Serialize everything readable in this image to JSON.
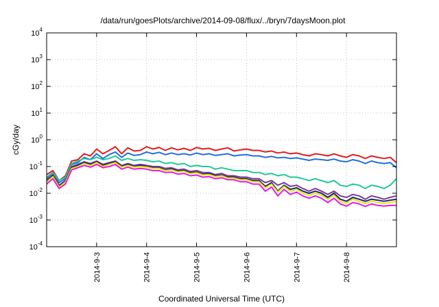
{
  "chart_data": {
    "type": "line",
    "title": "/data/run/goesPlots/archive/2014-09-08/flux/../bryn/7daysMoon.plot",
    "xlabel": "Coordinated Universal Time (UTC)",
    "ylabel": "cGy/day",
    "yscale": "log",
    "ylim": [
      0.0001,
      10000
    ],
    "y_ticks": [
      {
        "value": 0.0001,
        "base": "10",
        "exp": "-4"
      },
      {
        "value": 0.001,
        "base": "10",
        "exp": "-3"
      },
      {
        "value": 0.01,
        "base": "10",
        "exp": "-2"
      },
      {
        "value": 0.1,
        "base": "10",
        "exp": "-1"
      },
      {
        "value": 1,
        "base": "10",
        "exp": "0"
      },
      {
        "value": 10,
        "base": "10",
        "exp": "1"
      },
      {
        "value": 100,
        "base": "10",
        "exp": "2"
      },
      {
        "value": 1000,
        "base": "10",
        "exp": "3"
      },
      {
        "value": 10000,
        "base": "10",
        "exp": "4"
      }
    ],
    "xlim": [
      "2014-09-02T00:00",
      "2014-09-09T00:00"
    ],
    "x_ticks": [
      "2014-9-3",
      "2014-9-4",
      "2014-9-5",
      "2014-9-6",
      "2014-9-7",
      "2014-9-8"
    ],
    "grid": true,
    "legend": "none",
    "x": [
      "2014-09-02T00:00",
      "2014-09-02T03:00",
      "2014-09-02T06:00",
      "2014-09-02T09:00",
      "2014-09-02T12:00",
      "2014-09-02T15:00",
      "2014-09-02T18:00",
      "2014-09-02T21:00",
      "2014-09-03T00:00",
      "2014-09-03T03:00",
      "2014-09-03T06:00",
      "2014-09-03T09:00",
      "2014-09-03T12:00",
      "2014-09-03T15:00",
      "2014-09-03T18:00",
      "2014-09-03T21:00",
      "2014-09-04T00:00",
      "2014-09-04T03:00",
      "2014-09-04T06:00",
      "2014-09-04T09:00",
      "2014-09-04T12:00",
      "2014-09-04T15:00",
      "2014-09-04T18:00",
      "2014-09-04T21:00",
      "2014-09-05T00:00",
      "2014-09-05T03:00",
      "2014-09-05T06:00",
      "2014-09-05T09:00",
      "2014-09-05T12:00",
      "2014-09-05T15:00",
      "2014-09-05T18:00",
      "2014-09-05T21:00",
      "2014-09-06T00:00",
      "2014-09-06T03:00",
      "2014-09-06T06:00",
      "2014-09-06T09:00",
      "2014-09-06T12:00",
      "2014-09-06T15:00",
      "2014-09-06T18:00",
      "2014-09-06T21:00",
      "2014-09-07T00:00",
      "2014-09-07T03:00",
      "2014-09-07T06:00",
      "2014-09-07T09:00",
      "2014-09-07T12:00",
      "2014-09-07T15:00",
      "2014-09-07T18:00",
      "2014-09-07T21:00",
      "2014-09-08T00:00",
      "2014-09-08T03:00",
      "2014-09-08T06:00",
      "2014-09-08T09:00",
      "2014-09-08T12:00",
      "2014-09-08T15:00",
      "2014-09-08T18:00",
      "2014-09-08T21:00",
      "2014-09-09T00:00"
    ],
    "series": [
      {
        "color": "#e41a1c",
        "values": [
          0.05,
          0.07,
          0.03,
          0.045,
          0.16,
          0.18,
          0.3,
          0.25,
          0.45,
          0.3,
          0.4,
          0.55,
          0.3,
          0.5,
          0.38,
          0.4,
          0.55,
          0.45,
          0.52,
          0.4,
          0.5,
          0.42,
          0.48,
          0.4,
          0.52,
          0.45,
          0.48,
          0.4,
          0.45,
          0.5,
          0.38,
          0.42,
          0.45,
          0.4,
          0.4,
          0.35,
          0.38,
          0.32,
          0.35,
          0.3,
          0.32,
          0.28,
          0.25,
          0.3,
          0.28,
          0.25,
          0.3,
          0.25,
          0.22,
          0.28,
          0.25,
          0.2,
          0.25,
          0.22,
          0.2,
          0.22,
          0.14
        ]
      },
      {
        "color": "#1e6fe0",
        "values": [
          0.035,
          0.06,
          0.025,
          0.035,
          0.12,
          0.14,
          0.22,
          0.18,
          0.3,
          0.2,
          0.28,
          0.35,
          0.22,
          0.32,
          0.26,
          0.28,
          0.35,
          0.3,
          0.34,
          0.28,
          0.32,
          0.28,
          0.3,
          0.27,
          0.32,
          0.28,
          0.3,
          0.26,
          0.28,
          0.3,
          0.25,
          0.27,
          0.28,
          0.25,
          0.25,
          0.22,
          0.24,
          0.21,
          0.22,
          0.2,
          0.21,
          0.19,
          0.17,
          0.19,
          0.18,
          0.17,
          0.19,
          0.16,
          0.15,
          0.18,
          0.16,
          0.13,
          0.16,
          0.14,
          0.13,
          0.14,
          0.09
        ]
      },
      {
        "color": "#1ec896",
        "values": [
          0.04,
          0.06,
          0.03,
          0.04,
          0.13,
          0.16,
          0.2,
          0.18,
          0.22,
          0.18,
          0.2,
          0.25,
          0.17,
          0.2,
          0.17,
          0.18,
          0.17,
          0.15,
          0.16,
          0.13,
          0.14,
          0.12,
          0.13,
          0.1,
          0.11,
          0.1,
          0.1,
          0.08,
          0.09,
          0.08,
          0.07,
          0.07,
          0.07,
          0.06,
          0.06,
          0.05,
          0.055,
          0.045,
          0.05,
          0.04,
          0.04,
          0.035,
          0.03,
          0.035,
          0.03,
          0.025,
          0.03,
          0.02,
          0.018,
          0.022,
          0.02,
          0.015,
          0.02,
          0.018,
          0.015,
          0.02,
          0.035
        ]
      },
      {
        "color": "#7a3b8c",
        "values": [
          0.03,
          0.05,
          0.02,
          0.03,
          0.1,
          0.12,
          0.15,
          0.13,
          0.16,
          0.12,
          0.14,
          0.16,
          0.11,
          0.13,
          0.11,
          0.12,
          0.11,
          0.1,
          0.1,
          0.085,
          0.09,
          0.075,
          0.08,
          0.065,
          0.07,
          0.06,
          0.06,
          0.05,
          0.055,
          0.045,
          0.045,
          0.04,
          0.04,
          0.035,
          0.035,
          0.025,
          0.03,
          0.02,
          0.025,
          0.018,
          0.02,
          0.015,
          0.012,
          0.015,
          0.012,
          0.009,
          0.012,
          0.008,
          0.007,
          0.009,
          0.008,
          0.006,
          0.008,
          0.007,
          0.006,
          0.007,
          0.008
        ]
      },
      {
        "color": "#1a237e",
        "values": [
          0.028,
          0.045,
          0.018,
          0.028,
          0.09,
          0.11,
          0.14,
          0.12,
          0.15,
          0.11,
          0.13,
          0.15,
          0.1,
          0.12,
          0.1,
          0.11,
          0.1,
          0.09,
          0.09,
          0.075,
          0.08,
          0.068,
          0.07,
          0.058,
          0.062,
          0.052,
          0.054,
          0.045,
          0.048,
          0.04,
          0.04,
          0.035,
          0.035,
          0.03,
          0.03,
          0.018,
          0.025,
          0.012,
          0.02,
          0.014,
          0.016,
          0.012,
          0.01,
          0.012,
          0.01,
          0.007,
          0.01,
          0.006,
          0.005,
          0.007,
          0.006,
          0.005,
          0.006,
          0.0055,
          0.005,
          0.0055,
          0.006
        ]
      },
      {
        "color": "#e6e600",
        "values": [
          0.026,
          0.042,
          0.017,
          0.026,
          0.085,
          0.1,
          0.13,
          0.11,
          0.14,
          0.1,
          0.12,
          0.14,
          0.095,
          0.11,
          0.095,
          0.1,
          0.095,
          0.085,
          0.085,
          0.07,
          0.075,
          0.063,
          0.066,
          0.054,
          0.058,
          0.048,
          0.05,
          0.042,
          0.045,
          0.037,
          0.037,
          0.032,
          0.032,
          0.027,
          0.027,
          0.016,
          0.022,
          0.011,
          0.018,
          0.012,
          0.014,
          0.01,
          0.0085,
          0.01,
          0.0085,
          0.006,
          0.0085,
          0.005,
          0.0042,
          0.006,
          0.005,
          0.0042,
          0.005,
          0.0045,
          0.0042,
          0.0045,
          0.005
        ]
      },
      {
        "color": "#e619e6",
        "values": [
          0.022,
          0.035,
          0.015,
          0.022,
          0.075,
          0.09,
          0.11,
          0.095,
          0.12,
          0.09,
          0.1,
          0.12,
          0.08,
          0.095,
          0.08,
          0.085,
          0.08,
          0.07,
          0.07,
          0.06,
          0.062,
          0.052,
          0.055,
          0.045,
          0.048,
          0.04,
          0.042,
          0.035,
          0.038,
          0.032,
          0.032,
          0.027,
          0.027,
          0.022,
          0.022,
          0.012,
          0.017,
          0.008,
          0.014,
          0.009,
          0.011,
          0.008,
          0.0065,
          0.008,
          0.0065,
          0.0045,
          0.0065,
          0.004,
          0.0033,
          0.0045,
          0.004,
          0.0032,
          0.004,
          0.0035,
          0.0033,
          0.0035,
          0.0035
        ]
      }
    ]
  }
}
